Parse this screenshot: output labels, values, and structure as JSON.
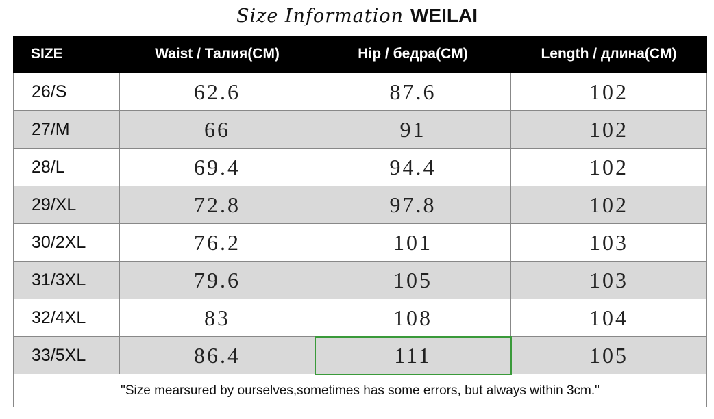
{
  "header": {
    "title": "Size Information",
    "brand": "WEILAI"
  },
  "table": {
    "columns": [
      "SIZE",
      "Waist / Талия(CM)",
      "Hip / бедра(CM)",
      "Length / длина(CM)"
    ],
    "rows": [
      [
        "26/S",
        62.6,
        87.6,
        102
      ],
      [
        "27/M",
        66,
        91,
        102
      ],
      [
        "28/L",
        69.4,
        94.4,
        102
      ],
      [
        "29/XL",
        72.8,
        97.8,
        102
      ],
      [
        "30/2XL",
        76.2,
        101,
        103
      ],
      [
        "31/3XL",
        79.6,
        105,
        103
      ],
      [
        "32/4XL",
        83,
        108,
        104
      ],
      [
        "33/5XL",
        86.4,
        111,
        105
      ]
    ],
    "note": "\"Size mearsured by ourselves,sometimes has some errors, but always within 3cm.\""
  }
}
